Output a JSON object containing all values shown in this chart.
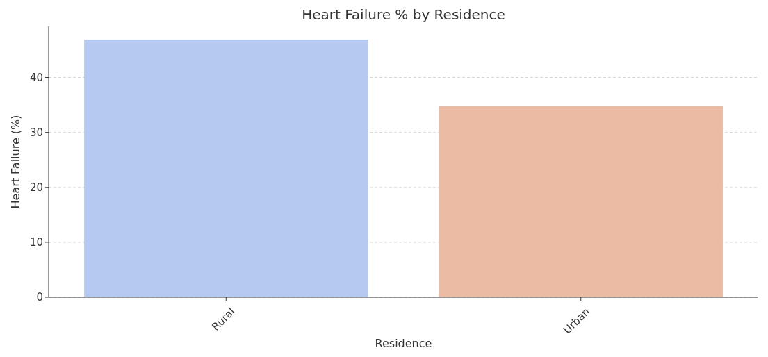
{
  "chart_data": {
    "type": "bar",
    "title": "Heart Failure % by Residence",
    "xlabel": "Residence",
    "ylabel": "Heart Failure (%)",
    "categories": [
      "Rural",
      "Urban"
    ],
    "values": [
      46.9,
      34.8
    ],
    "colors": [
      "#b5c9f1",
      "#ecbba4"
    ],
    "ylim": [
      0,
      49.3
    ],
    "yticks": [
      0,
      10,
      20,
      30,
      40
    ],
    "grid": "y"
  }
}
